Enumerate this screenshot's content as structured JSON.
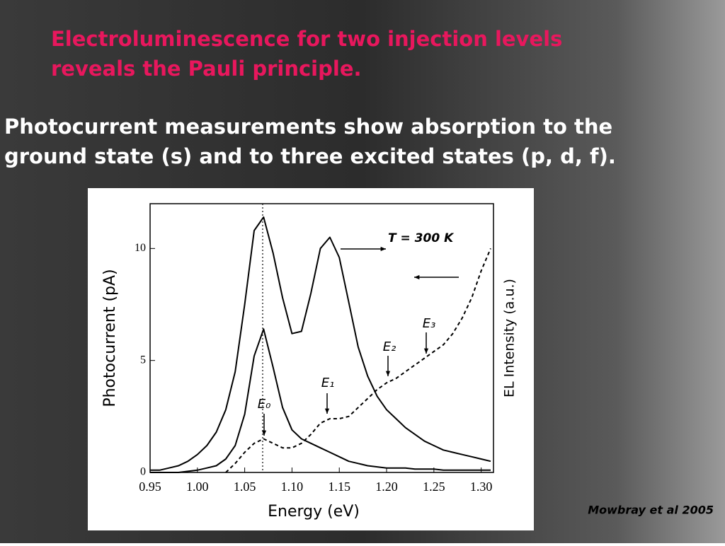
{
  "title": [
    "Electroluminescence for two injection levels",
    "reveals the Pauli principle."
  ],
  "subtitle": [
    "Photocurrent measurements show absorption to the",
    "ground state (s) and to three excited states (p, d, f)."
  ],
  "credit": "Mowbray et al 2005",
  "chart_data": {
    "type": "line",
    "x_label": "Energy (eV)",
    "y_label": "Photocurrent (pA)",
    "y2_label": "EL Intensity (a.u.)",
    "annotations": [
      "T = 300 K",
      "E₀",
      "E₁",
      "E₂",
      "E₃"
    ],
    "xlim": [
      0.95,
      1.313
    ],
    "ylim": [
      0,
      12
    ],
    "y2lim": [
      0,
      12
    ],
    "xticks": [
      0.95,
      {
        "value": 1,
        "label": "1.00"
      },
      1.05,
      {
        "value": 1.1,
        "label": "1.10"
      },
      1.15,
      {
        "value": 1.2,
        "label": "1.20"
      },
      1.25,
      {
        "value": 1.3,
        "label": "1.30"
      }
    ],
    "yticks": [
      0,
      5,
      10
    ],
    "x": [
      0.95,
      0.96,
      0.97,
      0.98,
      0.99,
      1.0,
      1.01,
      1.02,
      1.03,
      1.04,
      1.05,
      1.06,
      1.07,
      1.08,
      1.09,
      1.1,
      1.11,
      1.12,
      1.13,
      1.14,
      1.15,
      1.16,
      1.17,
      1.18,
      1.19,
      1.2,
      1.21,
      1.22,
      1.23,
      1.24,
      1.25,
      1.26,
      1.27,
      1.28,
      1.29,
      1.3,
      1.31
    ],
    "series": [
      {
        "color": "#000000",
        "dashed": false,
        "values": [
          0.1,
          0.1,
          0.2,
          0.3,
          0.5,
          0.8,
          1.2,
          1.8,
          2.8,
          4.5,
          7.5,
          10.8,
          11.4,
          9.8,
          7.8,
          6.2,
          6.3,
          8.0,
          10.0,
          10.5,
          9.6,
          7.6,
          5.6,
          4.3,
          3.4,
          2.8,
          2.4,
          2.0,
          1.7,
          1.4,
          1.2,
          1.0,
          0.9,
          0.8,
          0.7,
          0.6,
          0.5
        ]
      },
      {
        "color": "#000000",
        "dashed": false,
        "values": [
          0,
          0,
          0,
          0,
          0.05,
          0.1,
          0.2,
          0.3,
          0.6,
          1.2,
          2.6,
          5.2,
          6.4,
          4.7,
          2.9,
          1.9,
          1.5,
          1.3,
          1.1,
          0.9,
          0.7,
          0.5,
          0.4,
          0.3,
          0.25,
          0.2,
          0.2,
          0.2,
          0.15,
          0.15,
          0.15,
          0.1,
          0.1,
          0.1,
          0.1,
          0.1,
          0.1
        ]
      },
      {
        "color": "#000000",
        "dashed": true,
        "axis": "y2",
        "values": [
          null,
          null,
          null,
          null,
          null,
          null,
          null,
          null,
          0,
          0.4,
          0.9,
          1.3,
          1.5,
          1.3,
          1.1,
          1.1,
          1.3,
          1.7,
          2.2,
          2.4,
          2.4,
          2.5,
          2.9,
          3.3,
          3.7,
          4.0,
          4.2,
          4.5,
          4.8,
          5.1,
          5.4,
          5.7,
          6.2,
          6.9,
          7.8,
          9.0,
          10.0
        ]
      }
    ]
  }
}
